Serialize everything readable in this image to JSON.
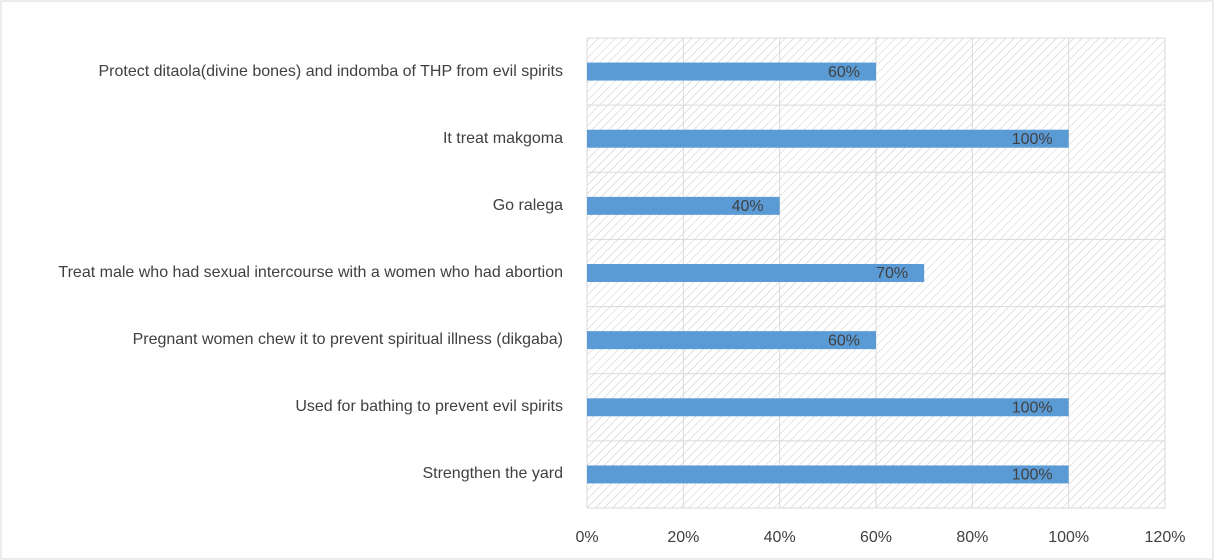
{
  "chart_data": {
    "type": "bar",
    "orientation": "horizontal",
    "categories": [
      "Protect ditaola(divine bones) and indomba of THP from evil spirits",
      "It treat makgoma",
      "Go ralega",
      "Treat male who had sexual intercourse with a women who had abortion",
      "Pregnant women chew it to prevent spiritual illness (dikgaba)",
      "Used for bathing to prevent evil spirits",
      "Strengthen the yard"
    ],
    "values": [
      60,
      100,
      40,
      70,
      60,
      100,
      100
    ],
    "value_labels": [
      "60%",
      "100%",
      "40%",
      "70%",
      "60%",
      "100%",
      "100%"
    ],
    "color": "#5b9bd5",
    "xlim": [
      0,
      120
    ],
    "xticks": [
      {
        "value": 0,
        "label": "0%"
      },
      {
        "value": 20,
        "label": "20%"
      },
      {
        "value": 40,
        "label": "40%"
      },
      {
        "value": 60,
        "label": "60%"
      },
      {
        "value": 80,
        "label": "80%"
      },
      {
        "value": 100,
        "label": "100%"
      },
      {
        "value": 120,
        "label": "120%"
      }
    ],
    "grid": true
  }
}
